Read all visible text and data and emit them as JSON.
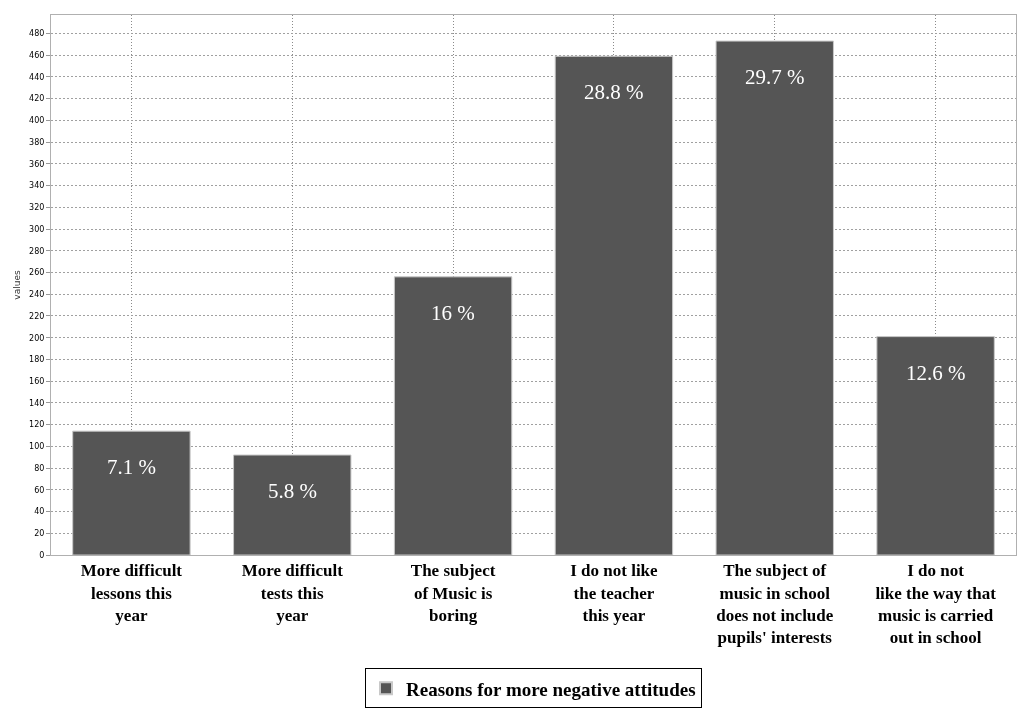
{
  "chart_data": {
    "type": "bar",
    "ylabel": "values",
    "categories": [
      "More difficult\nlessons this\nyear",
      "More difficult\ntests this\nyear",
      "The subject\nof Music is\nboring",
      "I do not like\nthe teacher\nthis year",
      "The subject of\nmusic in school\ndoes not include\npupils' interests",
      "I do not\nlike the way that\nmusic is carried\nout in school"
    ],
    "series": [
      {
        "name": "Reasons for more negative attitudes",
        "color": "#555555",
        "values": [
          114,
          92,
          256,
          459,
          473,
          201
        ]
      }
    ],
    "annotations": [
      {
        "text": "7.1 %",
        "x": "More difficult\nlessons this\nyear",
        "y": 114
      },
      {
        "text": "5.8 %",
        "x": "More difficult\ntests this\nyear",
        "y": 92
      },
      {
        "text": "16 %",
        "x": "The subject\nof Music is\nboring",
        "y": 256
      },
      {
        "text": "28.8 %",
        "x": "I do not like\nthe teacher\nthis year",
        "y": 459
      },
      {
        "text": "29.7 %",
        "x": "The subject of\nmusic in school\ndoes not include\npupils' interests",
        "y": 473
      },
      {
        "text": "12.6 %",
        "x": "I do not\nlike the way that\nmusic is carried\nout in school",
        "y": 201
      }
    ],
    "ylim": [
      0,
      497
    ],
    "yticks": [
      0,
      20,
      40,
      60,
      80,
      100,
      120,
      140,
      160,
      180,
      200,
      220,
      240,
      260,
      280,
      300,
      320,
      340,
      360,
      380,
      400,
      420,
      440,
      460,
      480
    ],
    "grid": true,
    "legend": "bottom"
  }
}
